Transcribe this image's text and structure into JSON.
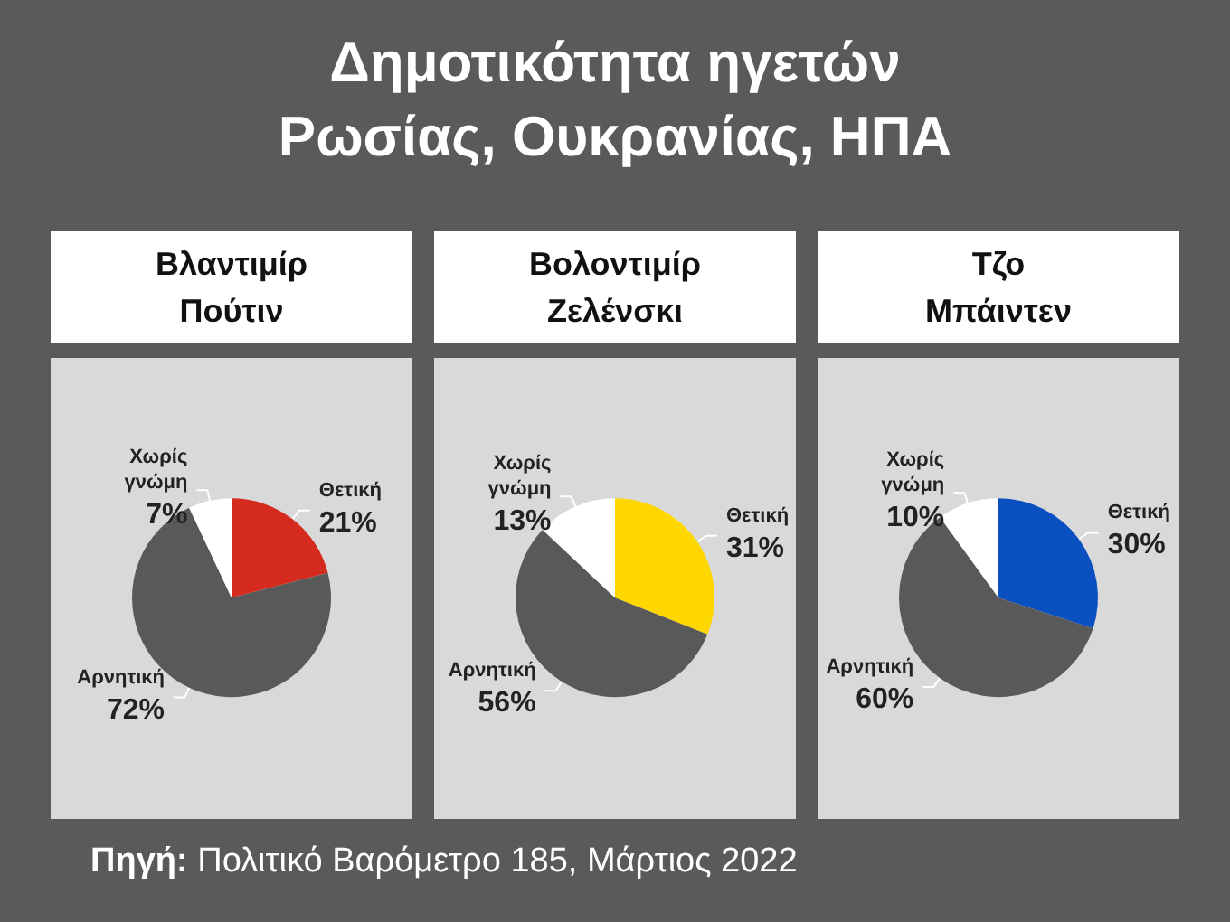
{
  "chart_data": [
    {
      "type": "other",
      "title": "Δημοτικότητα ηγετών Ρωσίας, Ουκρανίας, ΗΠΑ",
      "annotations": [
        "Πηγή: Πολιτικό Βαρόμετρο 185, Μάρτιος 2022"
      ]
    },
    {
      "type": "pie",
      "title": "Βλαντιμίρ Πούτιν",
      "categories": [
        "Θετική",
        "Αρνητική",
        "Χωρίς γνώμη"
      ],
      "values": [
        21,
        72,
        7
      ],
      "value_labels": [
        "21%",
        "72%",
        "7%"
      ],
      "colors": [
        "#d52b1e",
        "#595959",
        "#ffffff"
      ]
    },
    {
      "type": "pie",
      "title": "Βολοντιμίρ Ζελένσκι",
      "categories": [
        "Θετική",
        "Αρνητική",
        "Χωρίς γνώμη"
      ],
      "values": [
        31,
        56,
        13
      ],
      "value_labels": [
        "31%",
        "56%",
        "13%"
      ],
      "colors": [
        "#ffd700",
        "#595959",
        "#ffffff"
      ]
    },
    {
      "type": "pie",
      "title": "Τζο Μπάιντεν",
      "categories": [
        "Θετική",
        "Αρνητική",
        "Χωρίς γνώμη"
      ],
      "values": [
        30,
        60,
        10
      ],
      "value_labels": [
        "30%",
        "60%",
        "10%"
      ],
      "colors": [
        "#0a50c0",
        "#595959",
        "#ffffff"
      ]
    }
  ]
}
